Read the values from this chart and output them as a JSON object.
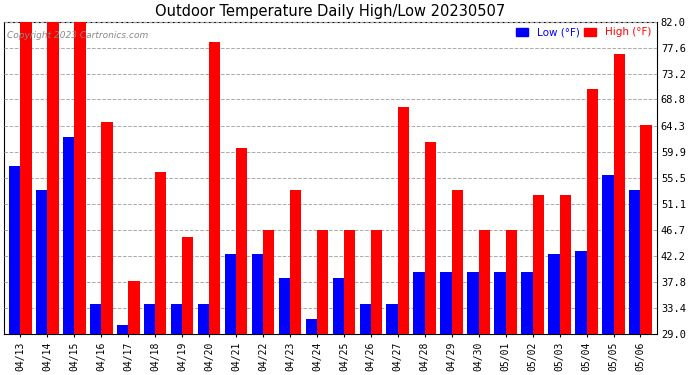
{
  "title": "Outdoor Temperature Daily High/Low 20230507",
  "copyright": "Copyright 2023 Cartronics.com",
  "low_color": "#0000ff",
  "high_color": "#ff0000",
  "yticks": [
    29.0,
    33.4,
    37.8,
    42.2,
    46.7,
    51.1,
    55.5,
    59.9,
    64.3,
    68.8,
    73.2,
    77.6,
    82.0
  ],
  "ylim": [
    29.0,
    82.0
  ],
  "background_color": "#ffffff",
  "grid_color": "#aaaaaa",
  "dates": [
    "04/13",
    "04/14",
    "04/15",
    "04/16",
    "04/17",
    "04/18",
    "04/19",
    "04/20",
    "04/21",
    "04/22",
    "04/23",
    "04/24",
    "04/25",
    "04/26",
    "04/27",
    "04/28",
    "04/29",
    "04/30",
    "05/01",
    "05/02",
    "05/03",
    "05/04",
    "05/05",
    "05/06"
  ],
  "highs": [
    82.0,
    82.0,
    82.0,
    65.0,
    38.0,
    56.5,
    45.5,
    78.5,
    60.5,
    46.7,
    53.5,
    46.7,
    46.7,
    46.7,
    67.5,
    61.5,
    53.5,
    46.7,
    46.7,
    52.5,
    52.5,
    70.5,
    76.5,
    64.5
  ],
  "lows": [
    57.5,
    53.5,
    62.5,
    34.0,
    30.5,
    34.0,
    34.0,
    34.0,
    42.5,
    42.5,
    38.5,
    31.5,
    38.5,
    34.0,
    34.0,
    39.5,
    39.5,
    39.5,
    39.5,
    39.5,
    42.5,
    43.0,
    56.0,
    53.5
  ],
  "figwidth": 6.9,
  "figheight": 3.75,
  "dpi": 100
}
